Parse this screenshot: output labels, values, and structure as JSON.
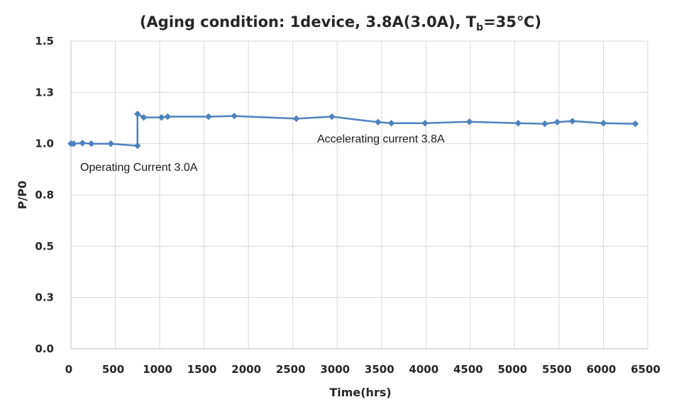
{
  "chart_data": {
    "type": "line",
    "title": {
      "prefix": "(Aging condition:  1device, 3.8A(3.0A), T",
      "subscript": "b",
      "suffix": "=35℃)"
    },
    "xlabel": "Time(hrs)",
    "ylabel": "P/P0",
    "xlim": [
      0,
      6500
    ],
    "ylim": [
      0,
      1.5
    ],
    "x_ticks": [
      "0",
      "500",
      "1000",
      "1500",
      "2000",
      "2500",
      "3000",
      "3500",
      "4000",
      "4500",
      "5000",
      "5500",
      "6000",
      "6500"
    ],
    "y_ticks": [
      "0.0",
      "0.3",
      "0.5",
      "0.8",
      "1.0",
      "1.3",
      "1.5"
    ],
    "grid": "vertical and horizontal",
    "series": [
      {
        "color": "#4f81bd",
        "points": [
          {
            "x": 0,
            "y": 1.0
          },
          {
            "x": 30,
            "y": 1.0
          },
          {
            "x": 130,
            "y": 1.003
          },
          {
            "x": 230,
            "y": 1.0
          },
          {
            "x": 450,
            "y": 1.0
          },
          {
            "x": 750,
            "y": 0.99
          },
          {
            "x": 750,
            "y": 1.145
          },
          {
            "x": 820,
            "y": 1.128
          },
          {
            "x": 1020,
            "y": 1.128
          },
          {
            "x": 1090,
            "y": 1.132
          },
          {
            "x": 1550,
            "y": 1.132
          },
          {
            "x": 1840,
            "y": 1.135
          },
          {
            "x": 2540,
            "y": 1.122
          },
          {
            "x": 2940,
            "y": 1.132
          },
          {
            "x": 3460,
            "y": 1.105
          },
          {
            "x": 3610,
            "y": 1.1
          },
          {
            "x": 3990,
            "y": 1.1
          },
          {
            "x": 4490,
            "y": 1.107
          },
          {
            "x": 5040,
            "y": 1.1
          },
          {
            "x": 5340,
            "y": 1.097
          },
          {
            "x": 5480,
            "y": 1.105
          },
          {
            "x": 5650,
            "y": 1.11
          },
          {
            "x": 6000,
            "y": 1.1
          },
          {
            "x": 6360,
            "y": 1.097
          }
        ]
      }
    ],
    "annotations": [
      {
        "text": "Operating Current 3.0A"
      },
      {
        "text": "Accelerating current 3.8A"
      }
    ]
  }
}
